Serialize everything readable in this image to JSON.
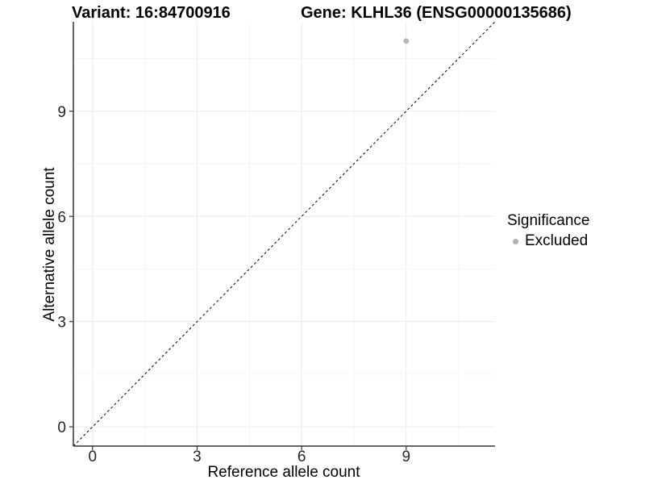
{
  "chart_data": {
    "type": "scatter",
    "titles": {
      "variant": "Variant: 16:84700916",
      "gene": "Gene: KLHL36 (ENSG00000135686)"
    },
    "xlabel": "Reference allele count",
    "ylabel": "Alternative allele count",
    "xlim": [
      -0.55,
      11.55
    ],
    "ylim": [
      -0.55,
      11.55
    ],
    "x_ticks": [
      0,
      3,
      6,
      9
    ],
    "y_ticks": [
      0,
      3,
      6,
      9
    ],
    "x_minor_ticks": [
      1.5,
      4.5,
      7.5,
      10.5
    ],
    "y_minor_ticks": [
      1.5,
      4.5,
      7.5,
      10.5
    ],
    "grid": true,
    "series": [
      {
        "name": "Excluded",
        "color": "#b7b7b7",
        "point_radius": 3.4,
        "points": [
          {
            "x": 9,
            "y": 11
          }
        ]
      }
    ],
    "reference_line": {
      "style": "dashed",
      "slope": 1,
      "intercept": 0,
      "color": "#000000"
    },
    "legend": {
      "title": "Significance",
      "position": "right",
      "items": [
        {
          "label": "Excluded",
          "color": "#b0b0b0"
        }
      ]
    },
    "colors": {
      "background": "#ffffff",
      "grid_major": "#ebebeb",
      "grid_minor": "#f5f5f5",
      "axis_line": "#333333",
      "tick_mark": "#333333",
      "tick_label": "#262626",
      "title_text": "#000000"
    }
  }
}
